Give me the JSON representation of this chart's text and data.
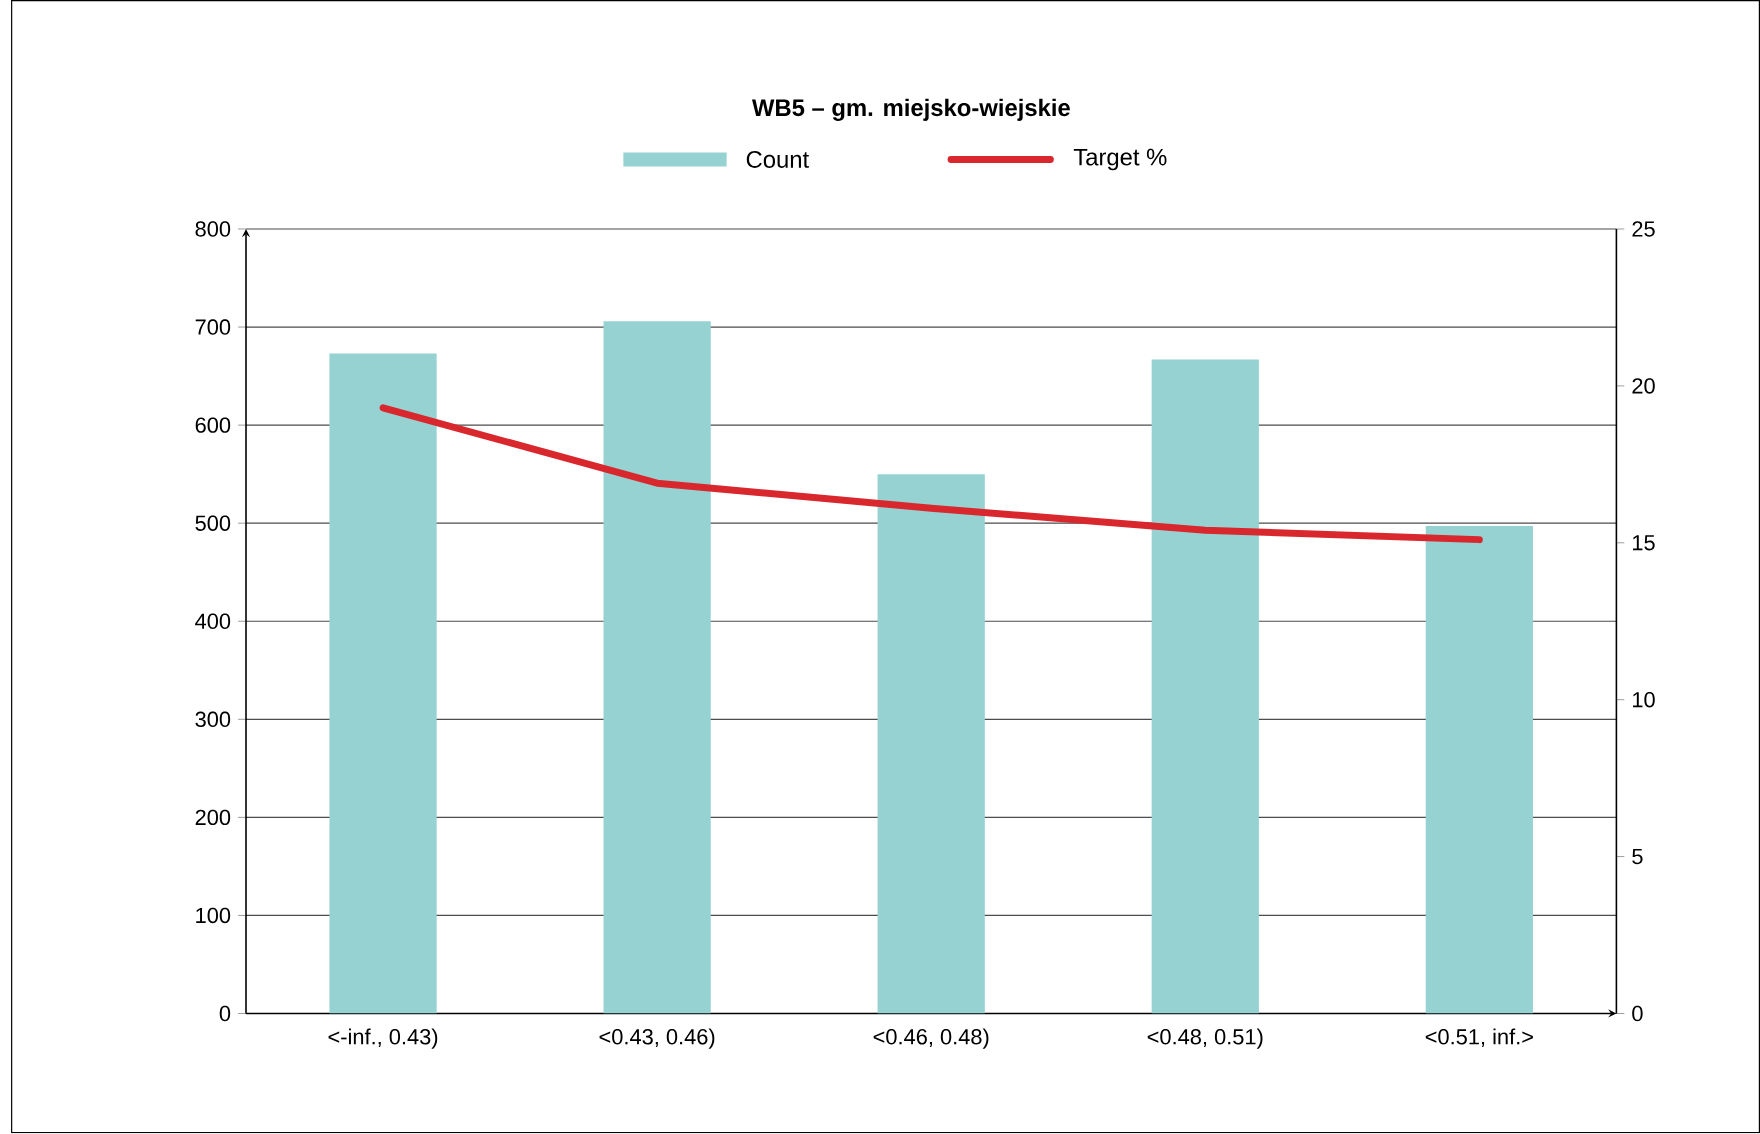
{
  "chart_data": {
    "type": "bar",
    "title": "WB5 – gm. miejsko-wiejskie",
    "categories": [
      "<-inf., 0.43)",
      "<0.43, 0.46)",
      "<0.46, 0.48)",
      "<0.48, 0.51)",
      "<0.51, inf.>"
    ],
    "series": [
      {
        "name": "Count",
        "color": "#96d2d2",
        "values": [
          673,
          706,
          550,
          667,
          497
        ]
      },
      {
        "name": "Target %",
        "type": "line",
        "axis": "y2",
        "color": "#d9272e",
        "values": [
          19.3,
          16.9,
          16.1,
          15.4,
          15.1
        ]
      }
    ],
    "ylim": [
      0,
      800
    ],
    "yticks": [
      0,
      100,
      200,
      300,
      400,
      500,
      600,
      700,
      800
    ],
    "y2lim": [
      0,
      25
    ],
    "y2ticks": [
      0,
      5,
      10,
      15,
      20,
      25
    ],
    "grid": "y",
    "legend": "top",
    "marker": "none"
  }
}
